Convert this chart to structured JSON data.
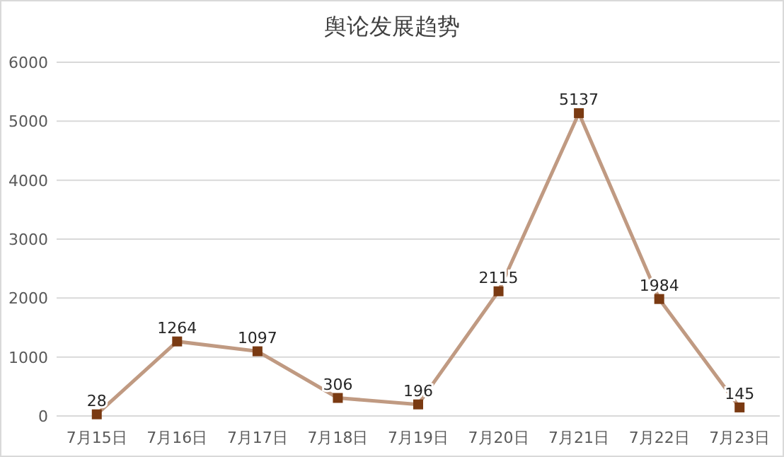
{
  "chart_data": {
    "type": "line",
    "title": "舆论发展趋势",
    "categories": [
      "7月15日",
      "7月16日",
      "7月17日",
      "7月18日",
      "7月19日",
      "7月20日",
      "7月21日",
      "7月22日",
      "7月23日"
    ],
    "series": [
      {
        "color": "#c09a82",
        "values": [
          28,
          1264,
          1097,
          306,
          196,
          2115,
          5137,
          1984,
          145
        ]
      }
    ],
    "ylim": [
      0,
      6000
    ],
    "yticks": [
      0,
      1000,
      2000,
      3000,
      4000,
      5000,
      6000
    ],
    "grid": "y",
    "data_labels": true,
    "marker": "square",
    "line_style": "solid"
  }
}
